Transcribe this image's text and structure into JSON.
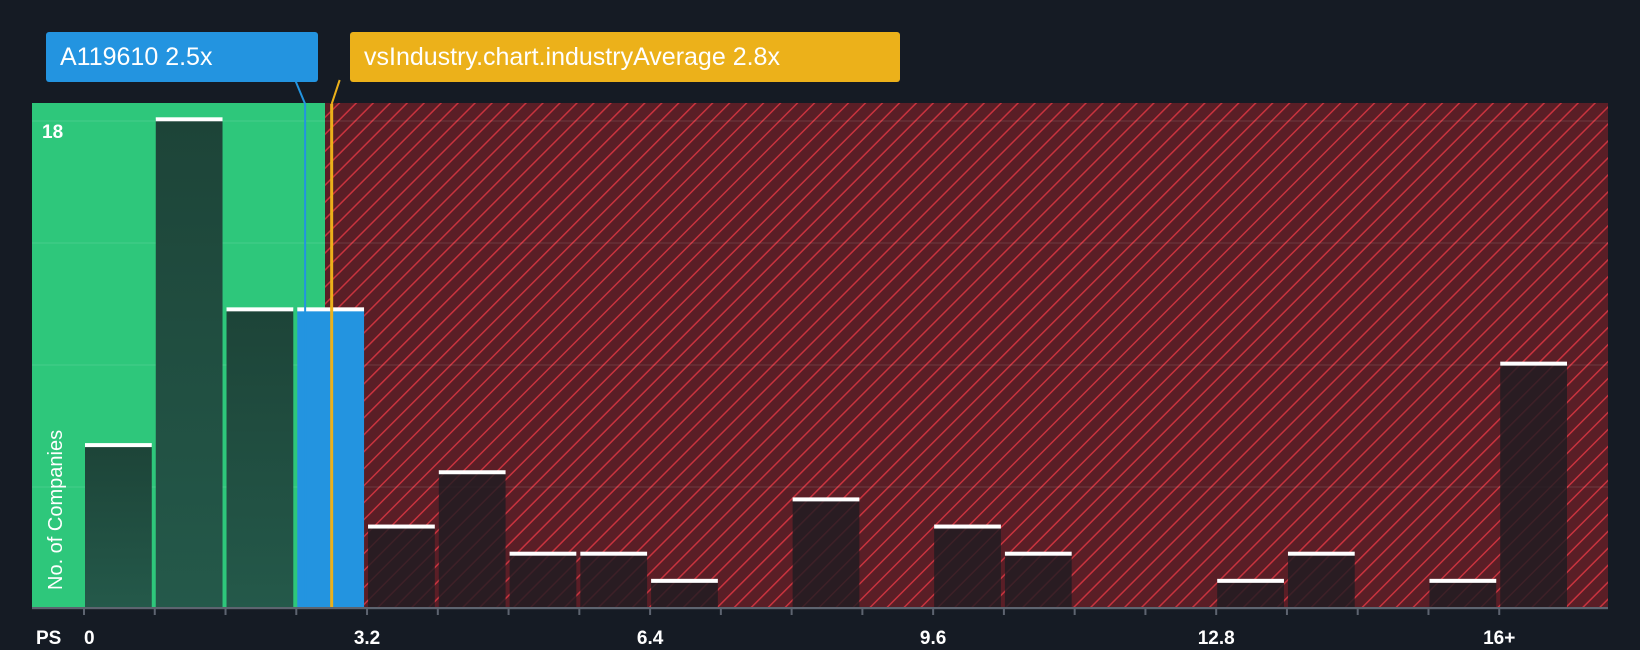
{
  "chart_data": {
    "type": "bar",
    "title": "",
    "xlabel": "PS",
    "ylabel": "No. of Companies",
    "x_ticks": [
      "0",
      "3.2",
      "6.4",
      "9.6",
      "12.8",
      "16+"
    ],
    "y_ticks": [
      "18"
    ],
    "ylim": [
      0,
      18.6
    ],
    "bins": [
      {
        "x0": 0.0,
        "x1": 0.8,
        "count": 6
      },
      {
        "x0": 0.8,
        "x1": 1.6,
        "count": 18
      },
      {
        "x0": 1.6,
        "x1": 2.4,
        "count": 11
      },
      {
        "x0": 2.4,
        "x1": 3.2,
        "count": 11
      },
      {
        "x0": 3.2,
        "x1": 4.0,
        "count": 3
      },
      {
        "x0": 4.0,
        "x1": 4.8,
        "count": 5
      },
      {
        "x0": 4.8,
        "x1": 5.6,
        "count": 2
      },
      {
        "x0": 5.6,
        "x1": 6.4,
        "count": 2
      },
      {
        "x0": 6.4,
        "x1": 7.2,
        "count": 1
      },
      {
        "x0": 7.2,
        "x1": 8.0,
        "count": 0
      },
      {
        "x0": 8.0,
        "x1": 8.8,
        "count": 4
      },
      {
        "x0": 8.8,
        "x1": 9.6,
        "count": 0
      },
      {
        "x0": 9.6,
        "x1": 10.4,
        "count": 3
      },
      {
        "x0": 10.4,
        "x1": 11.2,
        "count": 2
      },
      {
        "x0": 11.2,
        "x1": 12.0,
        "count": 0
      },
      {
        "x0": 12.0,
        "x1": 12.8,
        "count": 0
      },
      {
        "x0": 12.8,
        "x1": 13.6,
        "count": 1
      },
      {
        "x0": 13.6,
        "x1": 14.4,
        "count": 2
      },
      {
        "x0": 14.4,
        "x1": 15.2,
        "count": 0
      },
      {
        "x0": 15.2,
        "x1": 16.0,
        "count": 1
      },
      {
        "x0": 16.0,
        "x1": 16.8,
        "count": 9
      }
    ],
    "company": {
      "label": "A119610 2.5x",
      "value": 2.5
    },
    "industry_average": {
      "label": "vsIndustry.chart.industryAverage 2.8x",
      "value": 2.8
    },
    "highlight_bin_index": 3
  },
  "colors": {
    "background": "#151b24",
    "fair_zone": "#2ec77b",
    "overvalued_zone": "#b8313c",
    "company": "#2394e0",
    "industry": "#ecb11a",
    "bar": "#1f4a3e",
    "bar_red": "#262026",
    "cap": "#ffffff",
    "axis_text": "#ffffff"
  }
}
